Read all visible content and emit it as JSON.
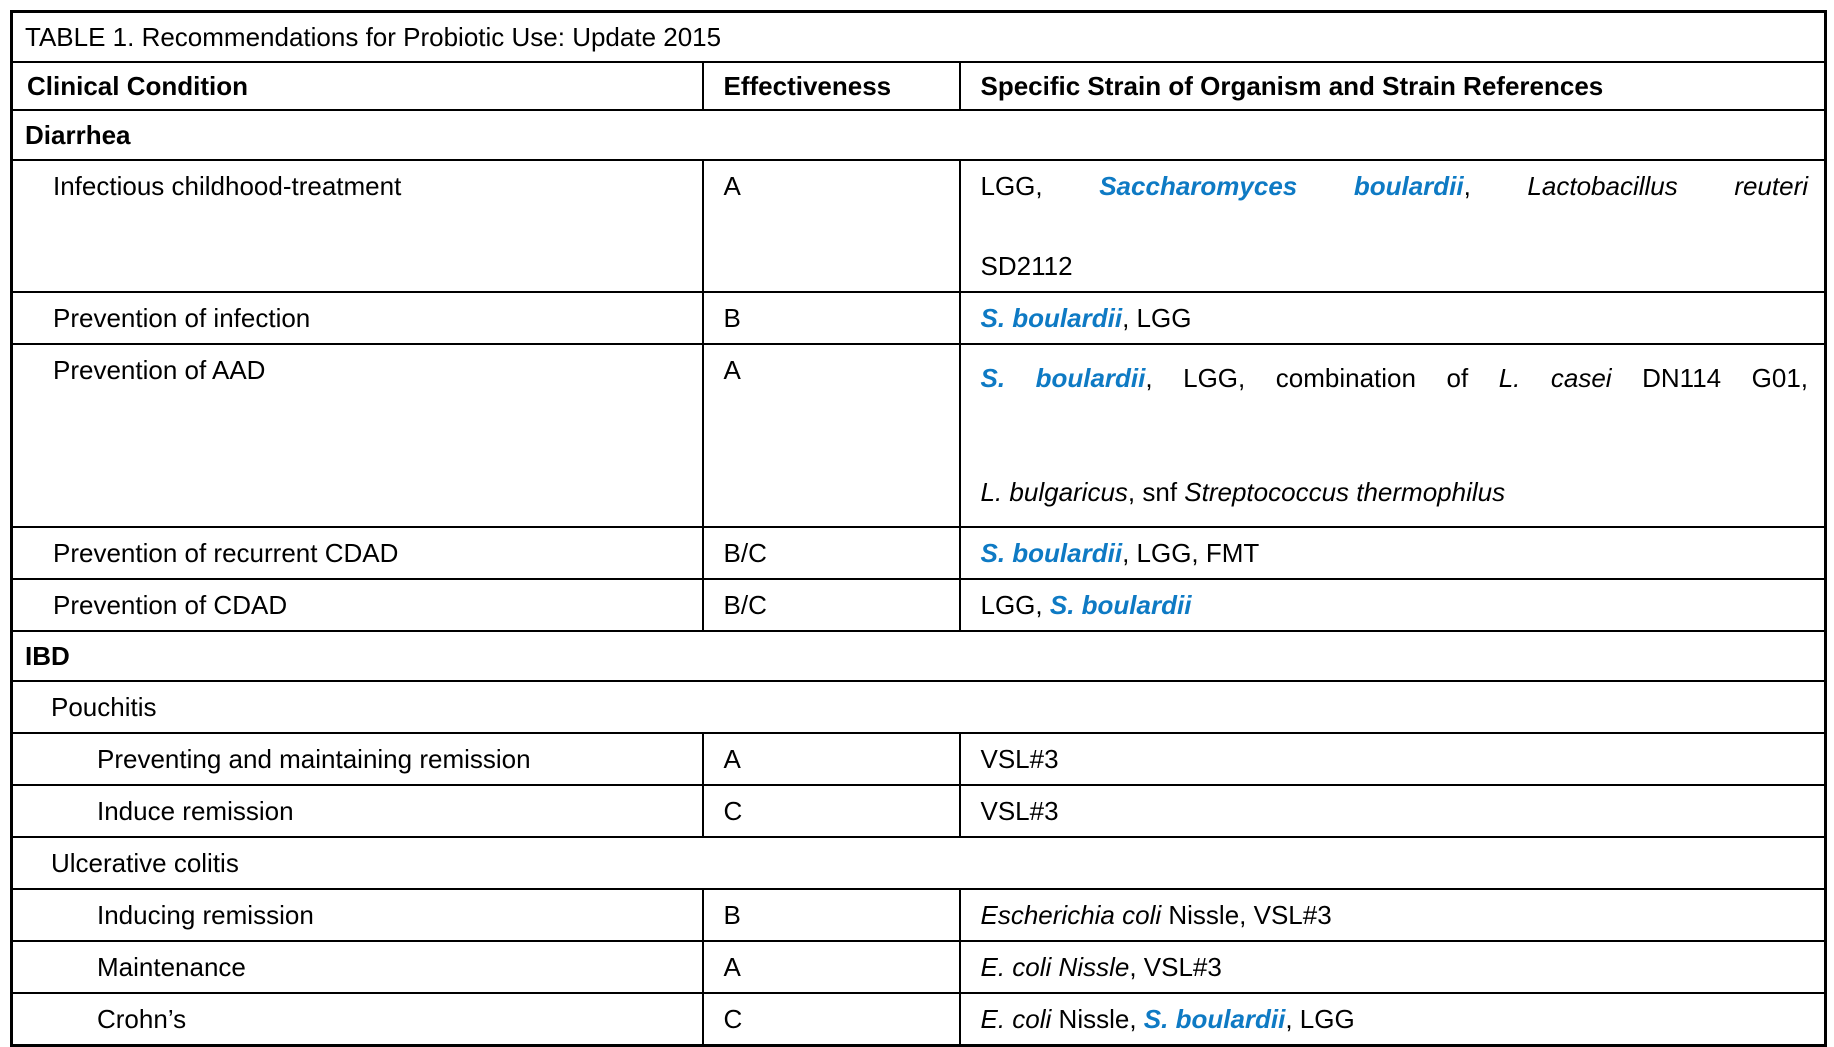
{
  "table": {
    "title": "TABLE 1. Recommendations for Probiotic Use: Update 2015",
    "accent_color": "#0E7AC4",
    "columns": [
      "Clinical Condition",
      "Effectiveness",
      "Specific Strain of Organism and Strain References"
    ],
    "rows": [
      {
        "type": "section",
        "indent": 0,
        "condition": "Diarrhea"
      },
      {
        "type": "data",
        "indent": 1,
        "condition": "Infectious childhood-treatment",
        "effectiveness": "A",
        "justify_first_line": true,
        "strains": [
          {
            "text": "LGG, ",
            "style": "plain"
          },
          {
            "text": "Saccharomyces boulardii",
            "style": "accent"
          },
          {
            "text": ", ",
            "style": "plain"
          },
          {
            "text": "Lactobacillus reuteri",
            "style": "italic"
          },
          {
            "style": "break"
          },
          {
            "text": "SD2112",
            "style": "plain"
          }
        ]
      },
      {
        "type": "data",
        "indent": 1,
        "condition": "Prevention of infection",
        "effectiveness": "B",
        "strains": [
          {
            "text": "S. boulardii",
            "style": "accent"
          },
          {
            "text": ", LGG",
            "style": "plain"
          }
        ]
      },
      {
        "type": "data",
        "indent": 1,
        "condition": "Prevention of AAD",
        "effectiveness": "A",
        "spacing": "loose",
        "justify_first_line": true,
        "strains": [
          {
            "text": "S. boulardii",
            "style": "accent"
          },
          {
            "text": ", LGG, combination of ",
            "style": "plain"
          },
          {
            "text": "L. casei",
            "style": "italic"
          },
          {
            "text": " DN114 G01,",
            "style": "plain"
          },
          {
            "style": "break"
          },
          {
            "text": "L. bulgaricus",
            "style": "italic"
          },
          {
            "text": ", snf ",
            "style": "plain"
          },
          {
            "text": "Streptococcus thermophilus",
            "style": "italic"
          }
        ]
      },
      {
        "type": "data",
        "indent": 1,
        "condition": "Prevention of recurrent CDAD",
        "effectiveness": "B/C",
        "strains": [
          {
            "text": "S. boulardii",
            "style": "accent"
          },
          {
            "text": ", LGG, FMT",
            "style": "plain"
          }
        ]
      },
      {
        "type": "data",
        "indent": 1,
        "condition": "Prevention of CDAD",
        "effectiveness": "B/C",
        "strains": [
          {
            "text": "LGG, ",
            "style": "plain"
          },
          {
            "text": "S. boulardii",
            "style": "accent"
          }
        ]
      },
      {
        "type": "section",
        "indent": 0,
        "condition": "IBD"
      },
      {
        "type": "subsection",
        "indent": 1,
        "condition": "Pouchitis"
      },
      {
        "type": "data",
        "indent": 2,
        "condition": "Preventing and maintaining remission",
        "effectiveness": "A",
        "strains": [
          {
            "text": "VSL#3",
            "style": "plain"
          }
        ]
      },
      {
        "type": "data",
        "indent": 2,
        "condition": "Induce remission",
        "effectiveness": "C",
        "strains": [
          {
            "text": "VSL#3",
            "style": "plain"
          }
        ]
      },
      {
        "type": "subsection",
        "indent": 1,
        "condition": "Ulcerative colitis"
      },
      {
        "type": "data",
        "indent": 2,
        "condition": "Inducing remission",
        "effectiveness": "B",
        "strains": [
          {
            "text": "Escherichia coli",
            "style": "italic"
          },
          {
            "text": " Nissle, VSL#3",
            "style": "plain"
          }
        ]
      },
      {
        "type": "data",
        "indent": 2,
        "condition": "Maintenance",
        "effectiveness": "A",
        "strains": [
          {
            "text": "E. coli Nissle",
            "style": "italic"
          },
          {
            "text": ", VSL#3",
            "style": "plain"
          }
        ]
      },
      {
        "type": "data",
        "indent": 2,
        "condition": "Crohn’s",
        "effectiveness": "C",
        "strains": [
          {
            "text": "E. coli",
            "style": "italic"
          },
          {
            "text": " Nissle, ",
            "style": "plain"
          },
          {
            "text": "S. boulardii",
            "style": "accent"
          },
          {
            "text": ", LGG",
            "style": "plain"
          }
        ]
      }
    ]
  }
}
